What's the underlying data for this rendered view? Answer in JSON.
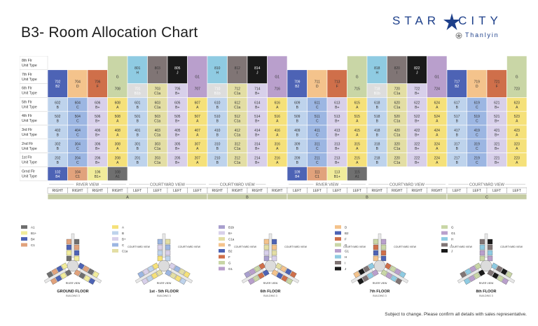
{
  "title": "B3- Room Allocation Chart",
  "brand": {
    "name": "STAR CITY",
    "sub": "Thanlyin"
  },
  "footer": "Subject to change. Please confirm all details with sales representative.",
  "floor_labels": [
    {
      "l1": "8th Flr",
      "l2": "Unit Type"
    },
    {
      "l1": "7th Flr",
      "l2": "Unit Type"
    },
    {
      "l1": "6th Flr",
      "l2": "Unit Type"
    },
    {
      "l1": "5th Flr",
      "l2": "Unit Type"
    },
    {
      "l1": "4th Flr",
      "l2": "Unit Type"
    },
    {
      "l1": "3rd Flr",
      "l2": "Unit Type"
    },
    {
      "l1": "2nd Flr",
      "l2": "Unit Type"
    },
    {
      "l1": "1st Flr",
      "l2": "Unit Type"
    },
    {
      "l1": "Grnd Flr",
      "l2": "Unit Type"
    }
  ],
  "unit_colors": {
    "A": "#f5e17a",
    "A1": "#6f6f6f",
    "B": "#bed3ec",
    "B1": "#a99fce",
    "B1+": "#f1ec9b",
    "B+": "#d8d0ea",
    "B2": "#4d63b5",
    "B4": "#4d63b5",
    "C": "#9cb6e2",
    "C1": "#e1a27c",
    "C1a": "#e3dea4",
    "D": "#f4c38c",
    "F": "#cf6f4a",
    "G": "#c9d6a6",
    "G1": "#b99fcc",
    "H": "#8fcbe2",
    "I": "#807575",
    "J": "#1a1a1a"
  },
  "columns": [
    {
      "c8": null,
      "c7": [
        "702",
        "B2"
      ],
      "c6": [
        "702",
        "B2"
      ],
      "u": [
        "602",
        "502",
        "402",
        "302",
        "202"
      ],
      "t": "B",
      "g": [
        "102",
        "B4"
      ]
    },
    {
      "c8": null,
      "c7": [
        "704",
        "D"
      ],
      "c6": [
        "704",
        "D"
      ],
      "u": [
        "604",
        "504",
        "404",
        "304",
        "204"
      ],
      "t": "C",
      "g": [
        "104",
        "C1"
      ]
    },
    {
      "c8": null,
      "c7": [
        "706",
        "F"
      ],
      "c6": [
        "706",
        "F"
      ],
      "u": [
        "606",
        "506",
        "406",
        "306",
        "206"
      ],
      "t": "B+",
      "g": [
        "106",
        "B1+"
      ]
    },
    {
      "c8": [
        "",
        "G"
      ],
      "c7": [
        "708",
        "G"
      ],
      "c6": [
        "708",
        "G"
      ],
      "u": [
        "608",
        "508",
        "408",
        "308",
        "208"
      ],
      "t": "A",
      "g": [
        "108",
        "A1"
      ]
    },
    {
      "c8": [
        "801",
        "H"
      ],
      "c7": [
        "801",
        "H"
      ],
      "c6": [
        "701",
        "B1b"
      ],
      "u": [
        "601",
        "501",
        "401",
        "301",
        "201"
      ],
      "t": "B",
      "g": null
    },
    {
      "c8": [
        "803",
        "I"
      ],
      "c7": [
        "803",
        "I"
      ],
      "c6": [
        "703",
        "C1a"
      ],
      "u": [
        "603",
        "503",
        "403",
        "303",
        "203"
      ],
      "t": "C1a",
      "g": null
    },
    {
      "c8": [
        "805",
        "J"
      ],
      "c7": [
        "805",
        "J"
      ],
      "c6": [
        "705",
        "B+"
      ],
      "u": [
        "605",
        "505",
        "405",
        "305",
        "205"
      ],
      "t": "B+",
      "g": null
    },
    {
      "c8": [
        "",
        "G1"
      ],
      "c7": [
        "707",
        "G1"
      ],
      "c6": [
        "707",
        "G1"
      ],
      "u": [
        "607",
        "507",
        "407",
        "307",
        "207"
      ],
      "t": "A",
      "g": null
    },
    {
      "c8": [
        "810",
        "H"
      ],
      "c7": [
        "810",
        "H"
      ],
      "c6": [
        "710",
        "B1b"
      ],
      "u": [
        "610",
        "510",
        "410",
        "310",
        "210"
      ],
      "t": "B",
      "g": null
    },
    {
      "c8": [
        "812",
        "I"
      ],
      "c7": [
        "812",
        "I"
      ],
      "c6": [
        "712",
        "C1a"
      ],
      "u": [
        "612",
        "512",
        "412",
        "312",
        "212"
      ],
      "t": "C1a",
      "g": null
    },
    {
      "c8": [
        "814",
        "J"
      ],
      "c7": [
        "814",
        "J"
      ],
      "c6": [
        "714",
        "B+"
      ],
      "u": [
        "614",
        "514",
        "414",
        "314",
        "214"
      ],
      "t": "B+",
      "g": null
    },
    {
      "c8": [
        "",
        "G1"
      ],
      "c7": [
        "716",
        "G1"
      ],
      "c6": [
        "716",
        "G1"
      ],
      "u": [
        "616",
        "516",
        "416",
        "316",
        "216"
      ],
      "t": "A",
      "g": null
    },
    {
      "c8": null,
      "c7": [
        "709",
        "B2"
      ],
      "c6": [
        "709",
        "B2"
      ],
      "u": [
        "609",
        "509",
        "409",
        "309",
        "209"
      ],
      "t": "B",
      "g": [
        "109",
        "B4"
      ]
    },
    {
      "c8": null,
      "c7": [
        "711",
        "D"
      ],
      "c6": [
        "711",
        "D"
      ],
      "u": [
        "611",
        "511",
        "411",
        "311",
        "211"
      ],
      "t": "C",
      "g": [
        "111",
        "C1"
      ]
    },
    {
      "c8": null,
      "c7": [
        "713",
        "F"
      ],
      "c6": [
        "713",
        "F"
      ],
      "u": [
        "613",
        "513",
        "413",
        "313",
        "213"
      ],
      "t": "B+",
      "g": [
        "113",
        "B1+"
      ]
    },
    {
      "c8": [
        "",
        "G"
      ],
      "c7": [
        "715",
        "G"
      ],
      "c6": [
        "715",
        "G"
      ],
      "u": [
        "615",
        "515",
        "415",
        "315",
        "215"
      ],
      "t": "A",
      "g": [
        "115",
        "A1"
      ]
    },
    {
      "c8": [
        "818",
        "H"
      ],
      "c7": [
        "818",
        "H"
      ],
      "c6": [
        "718",
        "B1b"
      ],
      "u": [
        "618",
        "518",
        "418",
        "318",
        "218"
      ],
      "t": "B",
      "g": null
    },
    {
      "c8": [
        "820",
        "I"
      ],
      "c7": [
        "820",
        "I"
      ],
      "c6": [
        "720",
        "C1a"
      ],
      "u": [
        "620",
        "520",
        "420",
        "320",
        "220"
      ],
      "t": "C1a",
      "g": null
    },
    {
      "c8": [
        "822",
        "J"
      ],
      "c7": [
        "822",
        "J"
      ],
      "c6": [
        "722",
        "B+"
      ],
      "u": [
        "622",
        "522",
        "422",
        "322",
        "222"
      ],
      "t": "B+",
      "g": null
    },
    {
      "c8": [
        "",
        "G1"
      ],
      "c7": [
        "724",
        "G1"
      ],
      "c6": [
        "724",
        "G1"
      ],
      "u": [
        "624",
        "524",
        "424",
        "324",
        "224"
      ],
      "t": "A",
      "g": null
    },
    {
      "c8": null,
      "c7": [
        "717",
        "B2"
      ],
      "c6": [
        "717",
        "B2"
      ],
      "u": [
        "617",
        "517",
        "417",
        "317",
        "217"
      ],
      "t": "B",
      "g": null
    },
    {
      "c8": null,
      "c7": [
        "719",
        "D"
      ],
      "c6": [
        "719",
        "D"
      ],
      "u": [
        "619",
        "519",
        "419",
        "319",
        "219"
      ],
      "t": "C",
      "g": null
    },
    {
      "c8": null,
      "c7": [
        "721",
        "F"
      ],
      "c6": [
        "721",
        "F"
      ],
      "u": [
        "621",
        "521",
        "421",
        "321",
        "221"
      ],
      "t": "B+",
      "g": null
    },
    {
      "c8": [
        "",
        "G"
      ],
      "c7": [
        "723",
        "G"
      ],
      "c6": [
        "723",
        "G"
      ],
      "u": [
        "623",
        "523",
        "423",
        "323",
        "223"
      ],
      "t": "A",
      "g": null
    }
  ],
  "view_groups": [
    {
      "label": "RIVER VIEW",
      "span": 4
    },
    {
      "label": "COURTYARD VIEW",
      "span": 4
    },
    {
      "label": "COURTYARD VIEW",
      "span": 3
    },
    {
      "label": "",
      "span": 1
    },
    {
      "label": "RIVER VIEW",
      "span": 4
    },
    {
      "label": "COURTYARD VIEW",
      "span": 4
    },
    {
      "label": "COURTYARD VIEW",
      "span": 4
    }
  ],
  "sides": [
    "RIGHT",
    "RIGHT",
    "RIGHT",
    "RIGHT",
    "LEFT",
    "LEFT",
    "LEFT",
    "LEFT",
    "RIGHT",
    "RIGHT",
    "RIGHT",
    "RIGHT",
    "LEFT",
    "LEFT",
    "LEFT",
    "LEFT",
    "RIGHT",
    "RIGHT",
    "RIGHT",
    "RIGHT",
    "LEFT",
    "LEFT",
    "LEFT",
    "LEFT"
  ],
  "wings": [
    {
      "label": "A",
      "span": 8
    },
    {
      "label": "B",
      "span": 4
    },
    {
      "label": "B",
      "span": 8
    },
    {
      "label": "C",
      "span": 4
    }
  ],
  "diagrams": [
    {
      "title": "GROUND FLOOR",
      "sub": "BUILDING 3",
      "legend": [
        [
          "A1",
          "A1"
        ],
        [
          "B1+",
          "B1+"
        ],
        [
          "B4",
          "B4"
        ],
        [
          "C1",
          "C1"
        ]
      ]
    },
    {
      "title": "1st - 5th FLOOR",
      "sub": "BUILDING 3",
      "legend": [
        [
          "A",
          "A"
        ],
        [
          "B",
          "B"
        ],
        [
          "B+",
          "B+"
        ],
        [
          "C",
          "C"
        ],
        [
          "C1a",
          "C1a"
        ]
      ]
    },
    {
      "title": "6th FLOOR",
      "sub": "BUILDING 3",
      "legend": [
        [
          "B1b",
          "B1"
        ],
        [
          "B+",
          "B+"
        ],
        [
          "C1a",
          "C1a"
        ],
        [
          "D",
          "D"
        ],
        [
          "B2",
          "B2"
        ],
        [
          "F",
          "F"
        ],
        [
          "G",
          "G"
        ],
        [
          "G1",
          "G1"
        ]
      ]
    },
    {
      "title": "7th FLOOR",
      "sub": "BUILDING 3",
      "legend_title": "ROOM TYPES",
      "legend": [
        [
          "D",
          "D"
        ],
        [
          "B2",
          "B2"
        ],
        [
          "F",
          "F"
        ],
        [
          "G",
          "G"
        ],
        [
          "G1",
          "G1"
        ],
        [
          "H",
          "H"
        ],
        [
          "I",
          "I"
        ],
        [
          "J",
          "J"
        ]
      ]
    },
    {
      "title": "8th FLOOR",
      "sub": "BUILDING 3",
      "legend_title": "ROOM TYPES",
      "legend": [
        [
          "G",
          "G"
        ],
        [
          "G1",
          "G1"
        ],
        [
          "H",
          "H"
        ],
        [
          "I",
          "I"
        ],
        [
          "J",
          "J"
        ]
      ]
    }
  ],
  "diagram_labels": {
    "courtyard": "COURTYARD VIEW",
    "river": "RIVER VIEW",
    "wing": "WING C"
  }
}
